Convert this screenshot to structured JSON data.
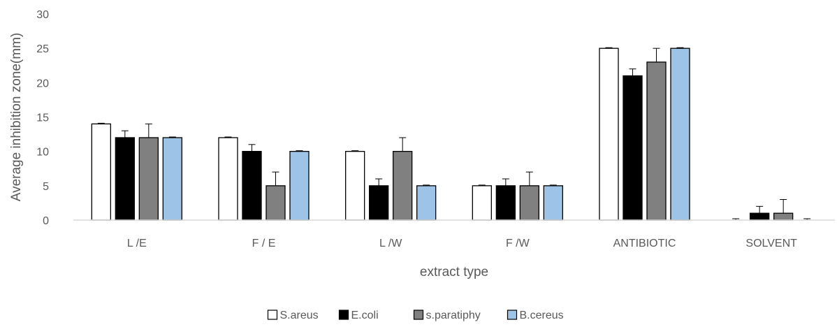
{
  "chart_data": {
    "type": "bar",
    "title": "",
    "xlabel": "extract type",
    "ylabel": "Average inhibition zone(mm)",
    "ylim": [
      0,
      30
    ],
    "yticks": [
      0,
      5,
      10,
      15,
      20,
      25,
      30
    ],
    "grid": false,
    "legend_position": "bottom",
    "categories": [
      "L /E",
      "F / E",
      "L /W",
      "F /W",
      "ANTIBIOTIC",
      "SOLVENT"
    ],
    "series": [
      {
        "name": "S.areus",
        "color": "#ffffff",
        "values": [
          14,
          12,
          10,
          5,
          25,
          0
        ],
        "errors": [
          0.1,
          0.1,
          0.1,
          0.1,
          0.1,
          0.2
        ]
      },
      {
        "name": "E.coli",
        "color": "#000000",
        "values": [
          12,
          10,
          5,
          5,
          21,
          1
        ],
        "errors": [
          1,
          1,
          1,
          1,
          1,
          1
        ]
      },
      {
        "name": "s.paratiphy",
        "color": "#808080",
        "values": [
          12,
          5,
          10,
          5,
          23,
          1
        ],
        "errors": [
          2,
          2,
          2,
          2,
          2,
          2
        ]
      },
      {
        "name": "B.cereus",
        "color": "#9dc3e6",
        "values": [
          12,
          10,
          5,
          5,
          25,
          0
        ],
        "errors": [
          0.1,
          0.1,
          0.1,
          0.1,
          0.1,
          0.2
        ]
      }
    ]
  }
}
